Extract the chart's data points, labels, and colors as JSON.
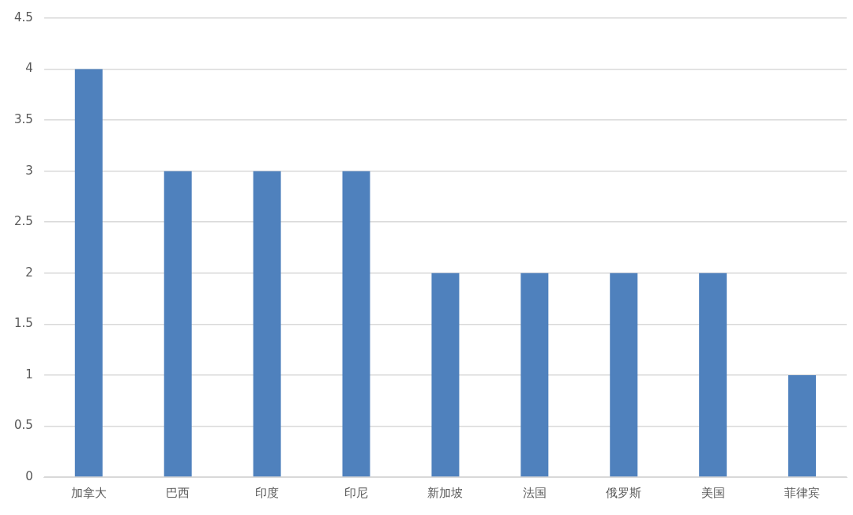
{
  "chart_data": {
    "type": "bar",
    "categories": [
      "加拿大",
      "巴西",
      "印度",
      "印尼",
      "新加坡",
      "法国",
      "俄罗斯",
      "美国",
      "菲律宾"
    ],
    "values": [
      4,
      3,
      3,
      3,
      2,
      2,
      2,
      2,
      1
    ],
    "color": "#4f81bd",
    "ylim": [
      0,
      4.5
    ],
    "yticks": [
      0,
      0.5,
      1,
      1.5,
      2,
      2.5,
      3,
      3.5,
      4,
      4.5
    ],
    "grid": "y",
    "legend": false
  }
}
